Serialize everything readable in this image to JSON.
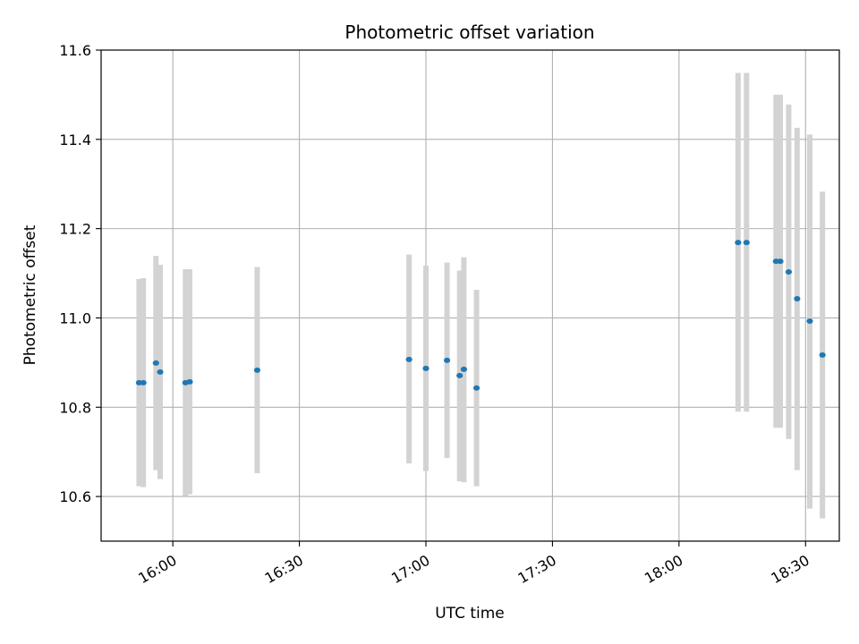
{
  "chart_data": {
    "type": "scatter",
    "title": "Photometric offset variation",
    "xlabel": "UTC time",
    "ylabel": "Photometric offset",
    "x_unit": "UTC time (HH:MM)",
    "xlim": [
      "15:43",
      "18:38"
    ],
    "ylim": [
      10.5,
      11.6
    ],
    "x_ticks": [
      "16:00",
      "16:30",
      "17:00",
      "17:30",
      "18:00",
      "18:30"
    ],
    "y_ticks": [
      10.6,
      10.8,
      11.0,
      11.2,
      11.4,
      11.6
    ],
    "grid": true,
    "legend": "none",
    "marker_color": "#1f77b4",
    "errorbar_color": "#d3d3d3",
    "points": [
      {
        "x": "15:52",
        "y": 10.855,
        "ylow": 10.623,
        "yhigh": 11.087
      },
      {
        "x": "15:53",
        "y": 10.855,
        "ylow": 10.621,
        "yhigh": 11.089
      },
      {
        "x": "15:56",
        "y": 10.899,
        "ylow": 10.659,
        "yhigh": 11.139
      },
      {
        "x": "15:57",
        "y": 10.879,
        "ylow": 10.639,
        "yhigh": 11.119
      },
      {
        "x": "16:03",
        "y": 10.855,
        "ylow": 10.601,
        "yhigh": 11.109
      },
      {
        "x": "16:04",
        "y": 10.857,
        "ylow": 10.605,
        "yhigh": 11.109
      },
      {
        "x": "16:20",
        "y": 10.883,
        "ylow": 10.652,
        "yhigh": 11.114
      },
      {
        "x": "16:56",
        "y": 10.907,
        "ylow": 10.674,
        "yhigh": 11.142
      },
      {
        "x": "17:00",
        "y": 10.887,
        "ylow": 10.657,
        "yhigh": 11.117
      },
      {
        "x": "17:05",
        "y": 10.905,
        "ylow": 10.686,
        "yhigh": 11.124
      },
      {
        "x": "17:08",
        "y": 10.871,
        "ylow": 10.634,
        "yhigh": 11.106
      },
      {
        "x": "17:09",
        "y": 10.885,
        "ylow": 10.632,
        "yhigh": 11.136
      },
      {
        "x": "17:12",
        "y": 10.843,
        "ylow": 10.623,
        "yhigh": 11.063
      },
      {
        "x": "18:14",
        "y": 11.169,
        "ylow": 10.79,
        "yhigh": 11.549
      },
      {
        "x": "18:16",
        "y": 11.169,
        "ylow": 10.79,
        "yhigh": 11.549
      },
      {
        "x": "18:23",
        "y": 11.127,
        "ylow": 10.754,
        "yhigh": 11.5
      },
      {
        "x": "18:24",
        "y": 11.127,
        "ylow": 10.754,
        "yhigh": 11.5
      },
      {
        "x": "18:26",
        "y": 11.103,
        "ylow": 10.729,
        "yhigh": 11.478
      },
      {
        "x": "18:28",
        "y": 11.043,
        "ylow": 10.659,
        "yhigh": 11.426
      },
      {
        "x": "18:31",
        "y": 10.993,
        "ylow": 10.573,
        "yhigh": 11.411
      },
      {
        "x": "18:34",
        "y": 10.917,
        "ylow": 10.551,
        "yhigh": 11.283
      }
    ]
  }
}
